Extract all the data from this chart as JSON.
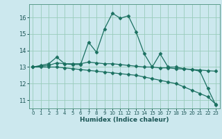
{
  "xlabel": "Humidex (Indice chaleur)",
  "bg_color": "#cce8ee",
  "grid_color": "#99ccbb",
  "line_color": "#1a7060",
  "xlim": [
    -0.5,
    23.5
  ],
  "ylim": [
    10.5,
    16.8
  ],
  "yticks": [
    11,
    12,
    13,
    14,
    15,
    16
  ],
  "xticks": [
    0,
    1,
    2,
    3,
    4,
    5,
    6,
    7,
    8,
    9,
    10,
    11,
    12,
    13,
    14,
    15,
    16,
    17,
    18,
    19,
    20,
    21,
    22,
    23
  ],
  "line1_x": [
    0,
    1,
    2,
    3,
    4,
    5,
    6,
    7,
    8,
    9,
    10,
    11,
    12,
    13,
    14,
    15,
    16,
    17,
    18,
    19,
    20,
    21,
    22,
    23
  ],
  "line1_y": [
    13.0,
    13.1,
    13.2,
    13.6,
    13.2,
    13.15,
    13.15,
    14.5,
    13.9,
    15.3,
    16.25,
    15.95,
    16.1,
    15.1,
    13.8,
    13.0,
    13.8,
    13.0,
    13.0,
    12.9,
    12.85,
    12.75,
    11.7,
    10.7
  ],
  "line2_x": [
    0,
    1,
    2,
    3,
    4,
    5,
    6,
    7,
    8,
    9,
    10,
    11,
    12,
    13,
    14,
    15,
    16,
    17,
    18,
    19,
    20,
    21,
    22,
    23
  ],
  "line2_y": [
    13.0,
    13.05,
    13.1,
    13.25,
    13.2,
    13.2,
    13.2,
    13.3,
    13.25,
    13.2,
    13.2,
    13.15,
    13.1,
    13.05,
    13.0,
    13.0,
    12.95,
    12.95,
    12.9,
    12.88,
    12.85,
    12.82,
    12.78,
    12.75
  ],
  "line3_x": [
    0,
    1,
    2,
    3,
    4,
    5,
    6,
    7,
    8,
    9,
    10,
    11,
    12,
    13,
    14,
    15,
    16,
    17,
    18,
    19,
    20,
    21,
    22,
    23
  ],
  "line3_y": [
    13.0,
    13.0,
    13.0,
    13.0,
    12.95,
    12.9,
    12.85,
    12.8,
    12.75,
    12.7,
    12.65,
    12.6,
    12.55,
    12.5,
    12.4,
    12.3,
    12.2,
    12.1,
    12.0,
    11.8,
    11.6,
    11.4,
    11.2,
    10.75
  ]
}
